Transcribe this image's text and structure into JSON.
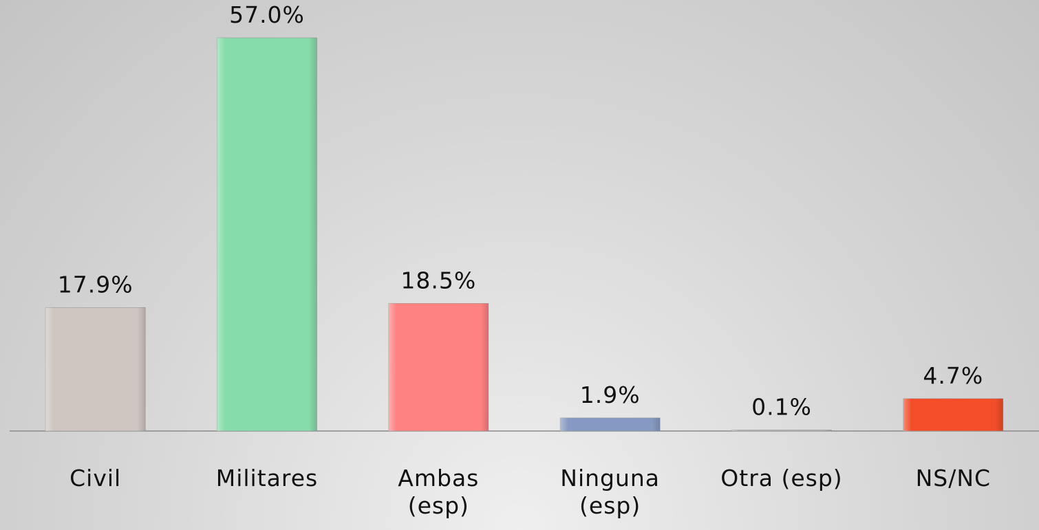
{
  "chart_data": {
    "type": "bar",
    "categories": [
      "Civil",
      "Militares",
      "Ambas (esp)",
      "Ninguna (esp)",
      "Otra (esp)",
      "NS/NC"
    ],
    "values": [
      17.9,
      57.0,
      18.5,
      1.9,
      0.1,
      4.7
    ],
    "value_labels": [
      "17.9%",
      "57.0%",
      "18.5%",
      "1.9%",
      "0.1%",
      "4.7%"
    ],
    "colors": [
      "#cfc6c1",
      "#86dcaa",
      "#ff8282",
      "#8699c2",
      "#b8b8b8",
      "#f24e2a"
    ]
  }
}
